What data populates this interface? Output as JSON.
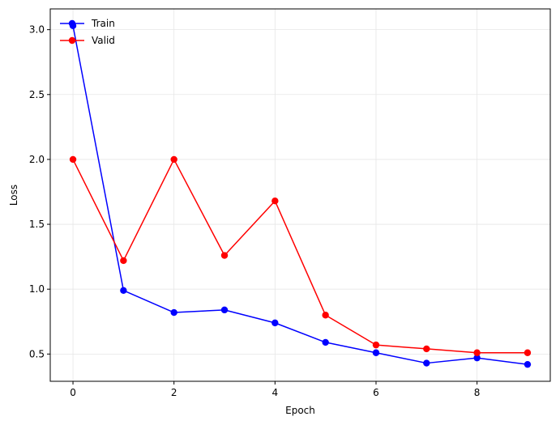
{
  "chart_data": {
    "type": "line",
    "title": "",
    "xlabel": "Epoch",
    "ylabel": "Loss",
    "xlim": [
      -0.45,
      9.45
    ],
    "ylim": [
      0.29,
      3.16
    ],
    "xticks": [
      0,
      2,
      4,
      6,
      8
    ],
    "yticks": [
      0.5,
      1.0,
      1.5,
      2.0,
      2.5,
      3.0
    ],
    "xtick_labels": [
      "0",
      "2",
      "4",
      "6",
      "8"
    ],
    "ytick_labels": [
      "0.5",
      "1.0",
      "1.5",
      "2.0",
      "2.5",
      "3.0"
    ],
    "grid": true,
    "legend_position": "top-left",
    "x": [
      0,
      1,
      2,
      3,
      4,
      5,
      6,
      7,
      8,
      9
    ],
    "series": [
      {
        "name": "Train",
        "color": "#0000ff",
        "values": [
          3.03,
          0.99,
          0.82,
          0.84,
          0.74,
          0.59,
          0.51,
          0.43,
          0.47,
          0.42
        ]
      },
      {
        "name": "Valid",
        "color": "#ff0000",
        "values": [
          2.0,
          1.22,
          2.0,
          1.26,
          1.68,
          0.8,
          0.57,
          0.54,
          0.51,
          0.51
        ]
      }
    ]
  }
}
